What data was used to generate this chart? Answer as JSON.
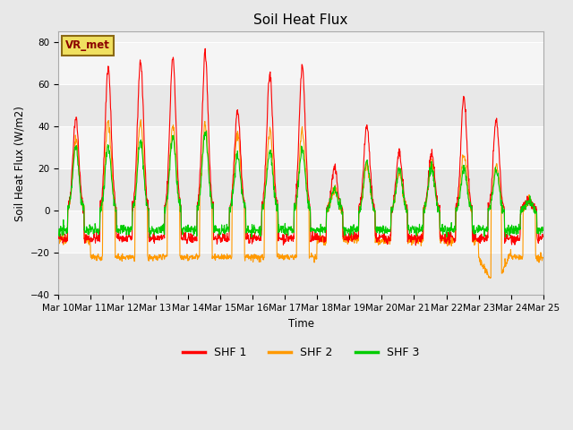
{
  "title": "Soil Heat Flux",
  "ylabel": "Soil Heat Flux (W/m2)",
  "xlabel": "Time",
  "legend_label": "VR_met",
  "series_labels": [
    "SHF 1",
    "SHF 2",
    "SHF 3"
  ],
  "series_colors": [
    "#ff0000",
    "#ff9900",
    "#00cc00"
  ],
  "ylim": [
    -40,
    85
  ],
  "yticks": [
    -40,
    -20,
    0,
    20,
    40,
    60,
    80
  ],
  "fig_bg_color": "#e8e8e8",
  "plot_bg_color": "#f0f0f0",
  "band_colors": [
    "#e8e8e8",
    "#f5f5f5"
  ],
  "n_days": 15,
  "start_day": 10,
  "points_per_day": 96,
  "day_peaks_shf1": [
    44,
    68,
    71,
    73,
    75,
    48,
    65,
    69,
    20,
    40,
    27,
    27,
    54,
    43,
    5
  ],
  "day_peaks_shf2": [
    33,
    43,
    42,
    41,
    41,
    37,
    38,
    38,
    11,
    22,
    18,
    22,
    27,
    22,
    5
  ],
  "day_peaks_shf3": [
    30,
    31,
    33,
    35,
    37,
    26,
    28,
    29,
    10,
    24,
    20,
    21,
    20,
    19,
    5
  ],
  "night_val_shf1": -13,
  "night_val_shf2": -14,
  "night_val_shf3": -9,
  "line_width": 0.8
}
